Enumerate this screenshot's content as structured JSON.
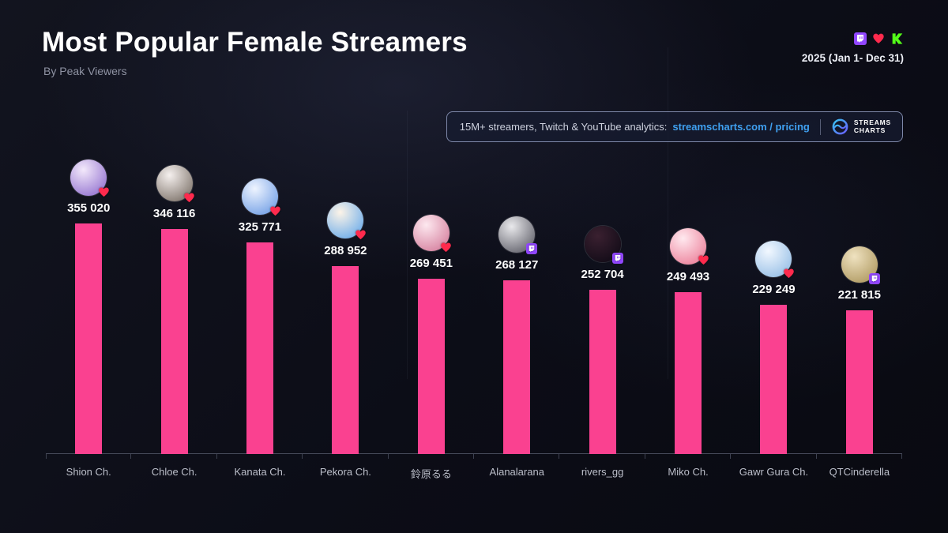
{
  "header": {
    "title": "Most Popular Female Streamers",
    "subtitle": "By Peak Viewers",
    "period": "2025 (Jan 1- Dec 31)"
  },
  "promo": {
    "text": "15M+ streamers, Twitch & YouTube analytics:",
    "link": "streamscharts.com / pricing",
    "brand_line1": "STREAMS",
    "brand_line2": "CHARTS"
  },
  "platform_icons": [
    "twitch",
    "heart",
    "kick"
  ],
  "colors": {
    "bar": "#fa4190",
    "twitch_purple": "#9146ff",
    "heart_red": "#ff2a4d",
    "kick_green": "#53fc18",
    "link_blue": "#3fa0f0"
  },
  "chart_data": {
    "type": "bar",
    "title": "Most Popular Female Streamers",
    "subtitle": "By Peak Viewers",
    "categories": [
      "Shion Ch.",
      "Chloe Ch.",
      "Kanata Ch.",
      "Pekora Ch.",
      "鈴原るる",
      "Alanalarana",
      "rivers_gg",
      "Miko Ch.",
      "Gawr Gura Ch.",
      "QTCinderella"
    ],
    "values": [
      355020,
      346116,
      325771,
      288952,
      269451,
      268127,
      252704,
      249493,
      229249,
      221815
    ],
    "value_labels": [
      "355 020",
      "346 116",
      "325 771",
      "288 952",
      "269 451",
      "268 127",
      "252 704",
      "249 493",
      "229 249",
      "221 815"
    ],
    "badges": [
      "heart",
      "heart",
      "heart",
      "heart",
      "heart",
      "twitch",
      "twitch",
      "heart",
      "heart",
      "twitch"
    ],
    "avatar_colors": [
      [
        "#f3e9fb",
        "#9d7fd4"
      ],
      [
        "#f5f0ee",
        "#8a8078"
      ],
      [
        "#eef4ff",
        "#7fa8e8"
      ],
      [
        "#fdf4e8",
        "#7ab3ea"
      ],
      [
        "#fde8ef",
        "#d98aa6"
      ],
      [
        "#e9e9ec",
        "#6f6f78"
      ],
      [
        "#3a2030",
        "#150d19"
      ],
      [
        "#ffe9ef",
        "#ee8aa2"
      ],
      [
        "#f2f8ff",
        "#9fc4e8"
      ],
      [
        "#efe2c0",
        "#b5a06a"
      ]
    ],
    "ylim": [
      0,
      355020
    ],
    "grid": false,
    "legend": false
  }
}
